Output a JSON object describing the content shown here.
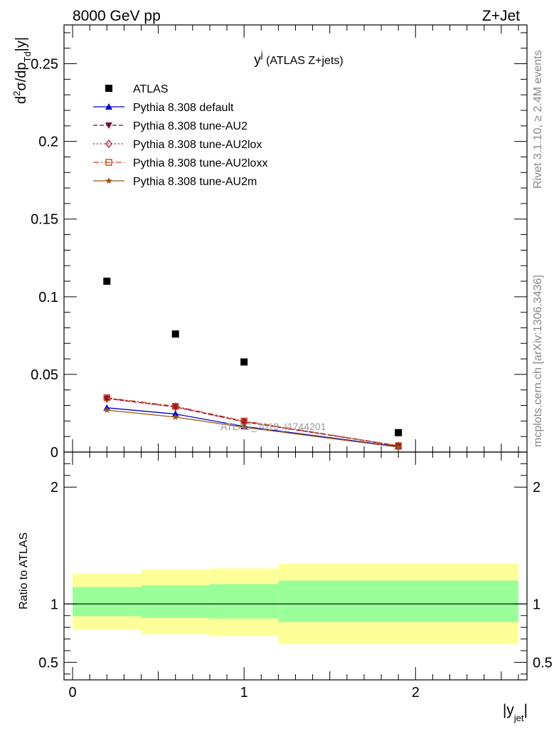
{
  "header": {
    "left": "8000 GeV pp",
    "right": "Z+Jet"
  },
  "side_labels": {
    "rivet": "Rivet 3.1.10, ≥ 2.4M events",
    "mcplots": "mcplots.cern.ch [arXiv:1306.3436]"
  },
  "watermark": "ATLAS_2019_I1744201",
  "chart_data": [
    {
      "type": "scatter",
      "title_main": "y",
      "title_sup": "j",
      "title_rest": " (ATLAS Z+jets)",
      "ylabel": {
        "d": "d",
        "sup2": "2",
        "sigma": "σ/dp",
        "sub": "Td",
        "rest": "|y|"
      },
      "ylim": [
        0,
        0.275
      ],
      "yticks": [
        0,
        0.05,
        0.1,
        0.15,
        0.2,
        0.25
      ],
      "ytick_labels": [
        "0",
        "0.05",
        "0.1",
        "0.15",
        "0.2",
        "0.25"
      ],
      "xlim": [
        -0.05,
        2.65
      ],
      "grid": false,
      "legend_position": "top-left",
      "x": [
        0.2,
        0.6,
        1.0,
        1.9
      ],
      "series": [
        {
          "name": "ATLAS",
          "color": "#000000",
          "marker": "square-filled",
          "line": "none",
          "values": [
            0.11,
            0.076,
            0.058,
            0.0125
          ]
        },
        {
          "name": "Pythia 8.308 default",
          "color": "#0000cc",
          "marker": "triangle-up-filled",
          "line": "solid",
          "values": [
            0.0285,
            0.0245,
            0.0165,
            0.0035
          ]
        },
        {
          "name": "Pythia 8.308 tune-AU2",
          "color": "#7a0a3a",
          "marker": "triangle-down-filled",
          "line": "dashed",
          "values": [
            0.0345,
            0.029,
            0.0195,
            0.004
          ]
        },
        {
          "name": "Pythia 8.308 tune-AU2lox",
          "color": "#aa1133",
          "marker": "diamond-open",
          "line": "dotted",
          "values": [
            0.0345,
            0.029,
            0.0195,
            0.004
          ]
        },
        {
          "name": "Pythia 8.308 tune-AU2loxx",
          "color": "#cc4411",
          "marker": "square-open",
          "line": "dashdot",
          "values": [
            0.035,
            0.0295,
            0.02,
            0.0041
          ]
        },
        {
          "name": "Pythia 8.308 tune-AU2m",
          "color": "#995511",
          "marker": "star",
          "line": "solid",
          "values": [
            0.027,
            0.0225,
            0.016,
            0.0032
          ]
        }
      ]
    },
    {
      "type": "area",
      "ylabel": "Ratio to ATLAS",
      "xlabel_main": "|y",
      "xlabel_sub": "jet",
      "xlabel_end": "|",
      "ylim": [
        0.35,
        2.3
      ],
      "yticks": [
        0.5,
        1,
        2
      ],
      "ytick_labels": [
        "0.5",
        "1",
        "2"
      ],
      "xticks": [
        0,
        1,
        2
      ],
      "xtick_labels": [
        "0",
        "1",
        "2"
      ],
      "xlim": [
        -0.05,
        2.65
      ],
      "reference_line": 1,
      "bins": [
        [
          0,
          0.4
        ],
        [
          0.4,
          0.8
        ],
        [
          0.8,
          1.2
        ],
        [
          1.2,
          2.6
        ]
      ],
      "band_outer": {
        "color": "#ffff99",
        "low": [
          0.78,
          0.74,
          0.725,
          0.655
        ],
        "high": [
          1.26,
          1.295,
          1.305,
          1.345
        ]
      },
      "band_inner": {
        "color": "#99ff99",
        "low": [
          0.895,
          0.88,
          0.875,
          0.845
        ],
        "high": [
          1.145,
          1.16,
          1.17,
          1.2
        ]
      }
    }
  ]
}
